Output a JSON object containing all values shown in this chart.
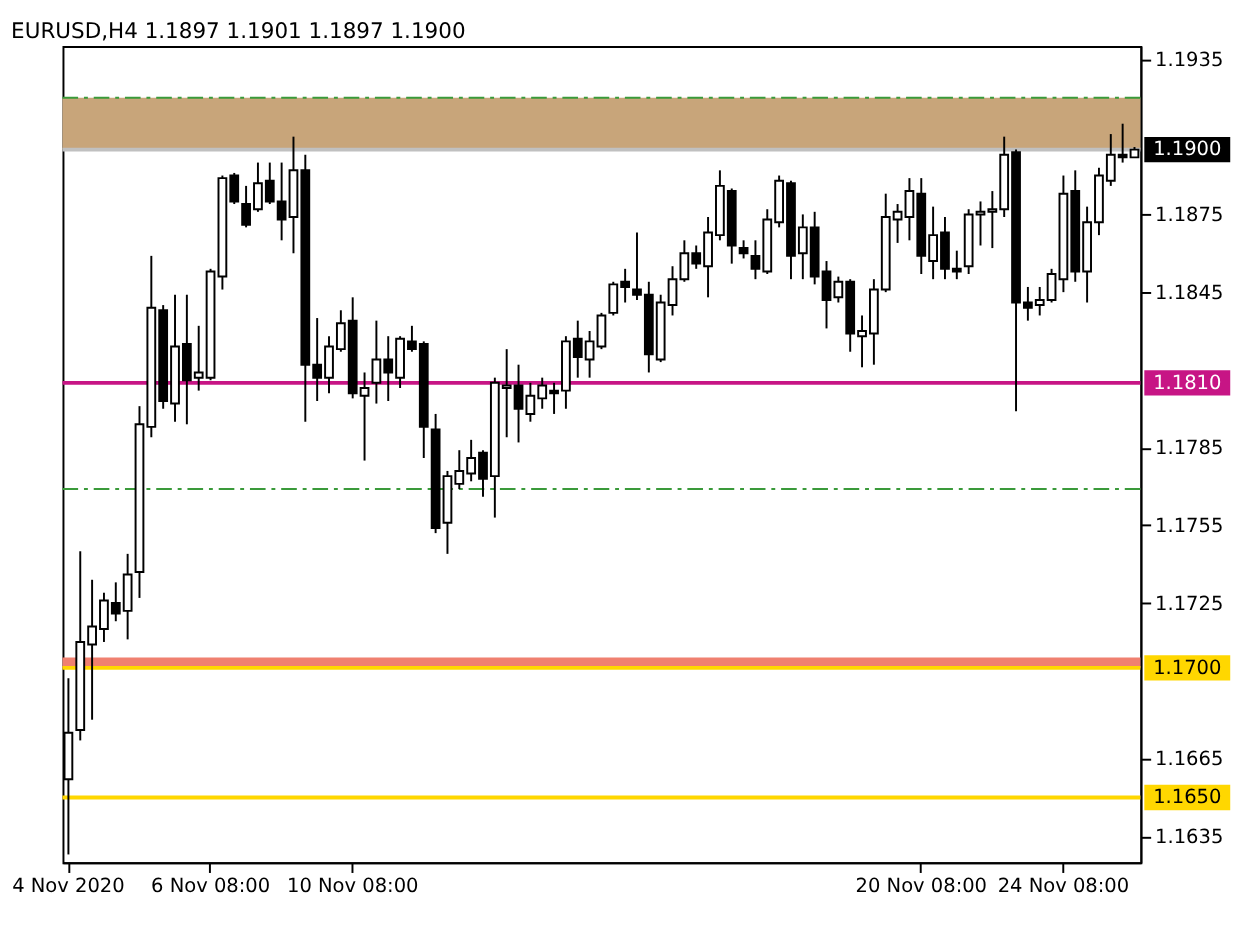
{
  "chart_data": {
    "type": "candlestick",
    "title": "EURUSD,H4  1.1897 1.1901 1.1897 1.1900",
    "categories": [
      "4 Nov 2020",
      null,
      null,
      null,
      null,
      null,
      null,
      null,
      null,
      null,
      null,
      null,
      "6 Nov 08:00",
      null,
      null,
      null,
      null,
      null,
      null,
      null,
      null,
      null,
      null,
      null,
      "10 Nov 08:00",
      null,
      null,
      null,
      null,
      null,
      null,
      null,
      null,
      null,
      null,
      null,
      null,
      null,
      null,
      null,
      null,
      null,
      null,
      null,
      null,
      null,
      null,
      null,
      null,
      null,
      null,
      null,
      null,
      null,
      null,
      null,
      null,
      null,
      null,
      null,
      null,
      null,
      null,
      null,
      null,
      null,
      null,
      null,
      null,
      null,
      null,
      null,
      "20 Nov 08:00",
      null,
      null,
      null,
      null,
      null,
      null,
      null,
      null,
      null,
      null,
      null,
      "24 Nov 08:00",
      null,
      null,
      null,
      null,
      null,
      null
    ],
    "ohlc": [
      [
        1.1657,
        1.1696,
        1.1628,
        1.1675
      ],
      [
        1.1676,
        1.1745,
        1.1672,
        1.171
      ],
      [
        1.1709,
        1.1734,
        1.168,
        1.1716
      ],
      [
        1.1715,
        1.1729,
        1.171,
        1.1726
      ],
      [
        1.1725,
        1.1733,
        1.1718,
        1.1721
      ],
      [
        1.1722,
        1.1744,
        1.1711,
        1.1736
      ],
      [
        1.1737,
        1.1801,
        1.1727,
        1.1794
      ],
      [
        1.1793,
        1.1859,
        1.1789,
        1.1839
      ],
      [
        1.1838,
        1.184,
        1.18,
        1.1803
      ],
      [
        1.1802,
        1.1844,
        1.1795,
        1.1824
      ],
      [
        1.1825,
        1.1844,
        1.1794,
        1.1811
      ],
      [
        1.1812,
        1.1832,
        1.1807,
        1.1814
      ],
      [
        1.1812,
        1.1854,
        1.1811,
        1.1853
      ],
      [
        1.1851,
        1.189,
        1.1846,
        1.1889
      ],
      [
        1.189,
        1.1891,
        1.1879,
        1.188
      ],
      [
        1.1879,
        1.1886,
        1.187,
        1.1871
      ],
      [
        1.1877,
        1.1895,
        1.1876,
        1.1887
      ],
      [
        1.1888,
        1.1895,
        1.1879,
        1.188
      ],
      [
        1.188,
        1.1895,
        1.1865,
        1.1873
      ],
      [
        1.1874,
        1.1905,
        1.186,
        1.1892
      ],
      [
        1.1892,
        1.1898,
        1.1795,
        1.1817
      ],
      [
        1.1817,
        1.1835,
        1.1803,
        1.1812
      ],
      [
        1.1812,
        1.1828,
        1.1806,
        1.1824
      ],
      [
        1.1823,
        1.1838,
        1.1822,
        1.1833
      ],
      [
        1.1834,
        1.1843,
        1.1804,
        1.1806
      ],
      [
        1.1805,
        1.1814,
        1.178,
        1.1808
      ],
      [
        1.181,
        1.1834,
        1.1802,
        1.1819
      ],
      [
        1.1819,
        1.1828,
        1.1803,
        1.1814
      ],
      [
        1.1812,
        1.1828,
        1.1808,
        1.1827
      ],
      [
        1.1826,
        1.1832,
        1.1822,
        1.1823
      ],
      [
        1.1825,
        1.1826,
        1.1781,
        1.1793
      ],
      [
        1.1792,
        1.1798,
        1.1752,
        1.1754
      ],
      [
        1.1756,
        1.1776,
        1.1744,
        1.1774
      ],
      [
        1.1771,
        1.1784,
        1.1769,
        1.1776
      ],
      [
        1.1775,
        1.1788,
        1.1772,
        1.1781
      ],
      [
        1.1783,
        1.1784,
        1.1766,
        1.1773
      ],
      [
        1.1774,
        1.1812,
        1.1758,
        1.181
      ],
      [
        1.1808,
        1.1823,
        1.1789,
        1.1809
      ],
      [
        1.1809,
        1.1817,
        1.1787,
        1.18
      ],
      [
        1.1798,
        1.181,
        1.1795,
        1.1805
      ],
      [
        1.1804,
        1.1812,
        1.18,
        1.1809
      ],
      [
        1.1807,
        1.181,
        1.1798,
        1.1806
      ],
      [
        1.1807,
        1.1828,
        1.18,
        1.1826
      ],
      [
        1.1827,
        1.1834,
        1.1812,
        1.182
      ],
      [
        1.1819,
        1.183,
        1.1812,
        1.1826
      ],
      [
        1.1824,
        1.1837,
        1.1823,
        1.1836
      ],
      [
        1.1837,
        1.1849,
        1.1836,
        1.1848
      ],
      [
        1.1849,
        1.1854,
        1.1841,
        1.1847
      ],
      [
        1.1846,
        1.1868,
        1.1842,
        1.1844
      ],
      [
        1.1844,
        1.1849,
        1.1814,
        1.1821
      ],
      [
        1.1819,
        1.1844,
        1.1818,
        1.1841
      ],
      [
        1.184,
        1.1855,
        1.1836,
        1.185
      ],
      [
        1.185,
        1.1865,
        1.1849,
        1.186
      ],
      [
        1.186,
        1.1863,
        1.1854,
        1.1856
      ],
      [
        1.1855,
        1.1874,
        1.1843,
        1.1868
      ],
      [
        1.1867,
        1.1892,
        1.1865,
        1.1886
      ],
      [
        1.1884,
        1.1885,
        1.1856,
        1.1863
      ],
      [
        1.1862,
        1.1865,
        1.1858,
        1.186
      ],
      [
        1.1859,
        1.1865,
        1.185,
        1.1854
      ],
      [
        1.1853,
        1.1877,
        1.1852,
        1.1873
      ],
      [
        1.1872,
        1.189,
        1.187,
        1.1888
      ],
      [
        1.1887,
        1.1888,
        1.185,
        1.1859
      ],
      [
        1.186,
        1.1875,
        1.185,
        1.187
      ],
      [
        1.187,
        1.1876,
        1.1848,
        1.1851
      ],
      [
        1.1853,
        1.1857,
        1.1831,
        1.1842
      ],
      [
        1.1843,
        1.1851,
        1.1841,
        1.1849
      ],
      [
        1.1849,
        1.185,
        1.1822,
        1.1829
      ],
      [
        1.1828,
        1.1836,
        1.1816,
        1.183
      ],
      [
        1.1829,
        1.185,
        1.1817,
        1.1846
      ],
      [
        1.1846,
        1.1883,
        1.1845,
        1.1874
      ],
      [
        1.1873,
        1.1879,
        1.1864,
        1.1876
      ],
      [
        1.1874,
        1.1889,
        1.1865,
        1.1884
      ],
      [
        1.1883,
        1.1889,
        1.1852,
        1.1859
      ],
      [
        1.1857,
        1.1878,
        1.185,
        1.1867
      ],
      [
        1.1868,
        1.1874,
        1.185,
        1.1854
      ],
      [
        1.1854,
        1.1861,
        1.185,
        1.1853
      ],
      [
        1.1855,
        1.1877,
        1.1852,
        1.1875
      ],
      [
        1.1875,
        1.188,
        1.1863,
        1.1876
      ],
      [
        1.1876,
        1.1884,
        1.1862,
        1.1877
      ],
      [
        1.1877,
        1.1905,
        1.1874,
        1.1898
      ],
      [
        1.1899,
        1.19,
        1.1799,
        1.1841
      ],
      [
        1.1841,
        1.1847,
        1.1834,
        1.1839
      ],
      [
        1.184,
        1.1847,
        1.1836,
        1.1842
      ],
      [
        1.1842,
        1.1854,
        1.1841,
        1.1852
      ],
      [
        1.185,
        1.189,
        1.1845,
        1.1883
      ],
      [
        1.1884,
        1.1892,
        1.1849,
        1.1853
      ],
      [
        1.1853,
        1.1878,
        1.1841,
        1.1872
      ],
      [
        1.1872,
        1.1893,
        1.1867,
        1.189
      ],
      [
        1.1888,
        1.1906,
        1.1886,
        1.1898
      ],
      [
        1.1898,
        1.191,
        1.1895,
        1.1897
      ],
      [
        1.1897,
        1.1901,
        1.1897,
        1.19
      ]
    ],
    "color": "#000000",
    "ylim": [
      1.1625,
      1.194
    ],
    "yticks": [
      1.1935,
      1.1875,
      1.1845,
      1.1785,
      1.1755,
      1.1725,
      1.1665,
      1.1635
    ],
    "bands": [
      {
        "axis": "y",
        "from": 1.19,
        "to": 1.192,
        "color": "#c8a57a"
      },
      {
        "axis": "y",
        "from": 1.17,
        "to": 1.1704,
        "color": "#f08070"
      }
    ],
    "ref_lines": [
      {
        "axis": "y",
        "value": 1.19,
        "label": "1.1900",
        "color": "#c0c0c0"
      },
      {
        "axis": "y",
        "value": 1.181,
        "label": "1.1810",
        "color": "#c71585"
      },
      {
        "axis": "y",
        "value": 1.17,
        "label": "1.1700",
        "color": "#ffd700"
      },
      {
        "axis": "y",
        "value": 1.165,
        "label": "1.1650",
        "color": "#ffd700"
      },
      {
        "axis": "y",
        "value": 1.192,
        "label": null,
        "color": "#3a9a3a",
        "line_style": "dashed"
      },
      {
        "axis": "y",
        "value": 1.1769,
        "label": null,
        "color": "#3a9a3a",
        "line_style": "dashed"
      }
    ],
    "grid": false
  }
}
